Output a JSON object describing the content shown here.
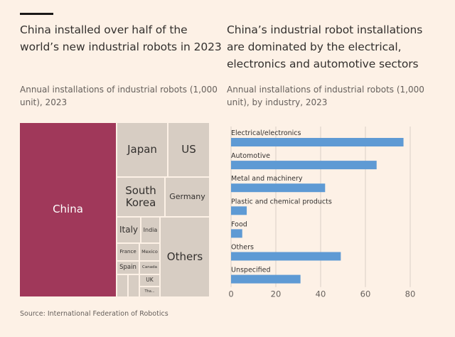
{
  "left": {
    "title": "China installed over half of the world’s new industrial robots in 2023",
    "subtitle": "Annual installations of industrial robots (1,000 unit), 2023"
  },
  "right": {
    "title": "China’s industrial robot installations are dominated by the electrical, electronics and automotive sectors",
    "subtitle": "Annual installations of industrial robots (1,000 unit), by industry, 2023"
  },
  "source": "Source: International Federation of Robotics",
  "colors": {
    "background": "#fdf1e6",
    "china": "#a0385a",
    "other_countries": "#d7cdc3",
    "bar": "#5e9ad4",
    "grid": "#d9cfc6"
  },
  "chart_data": [
    {
      "type": "treemap",
      "title": "China installed over half of the world’s new industrial robots in 2023",
      "subtitle": "Annual installations of industrial robots (1,000 unit), 2023",
      "labels": [
        "China",
        "Japan",
        "US",
        "South Korea",
        "Germany",
        "Italy",
        "India",
        "France",
        "Mexico",
        "Spain",
        "Canada",
        "UK",
        "Tha...",
        "Others"
      ]
    },
    {
      "type": "bar",
      "orientation": "horizontal",
      "title": "China’s industrial robot installations are dominated by the electrical, electronics and automotive sectors",
      "subtitle": "Annual installations of industrial robots (1,000 unit), by industry, 2023",
      "categories": [
        "Electrical/electronics",
        "Automotive",
        "Metal and machinery",
        "Plastic and chemical products",
        "Food",
        "Others",
        "Unspecified"
      ],
      "values": [
        77,
        65,
        42,
        7,
        5,
        49,
        31
      ],
      "xlim": [
        0,
        80
      ],
      "xticks": [
        "0",
        "20",
        "40",
        "60",
        "80"
      ],
      "grid": true,
      "xlabel": "",
      "ylabel": ""
    }
  ]
}
